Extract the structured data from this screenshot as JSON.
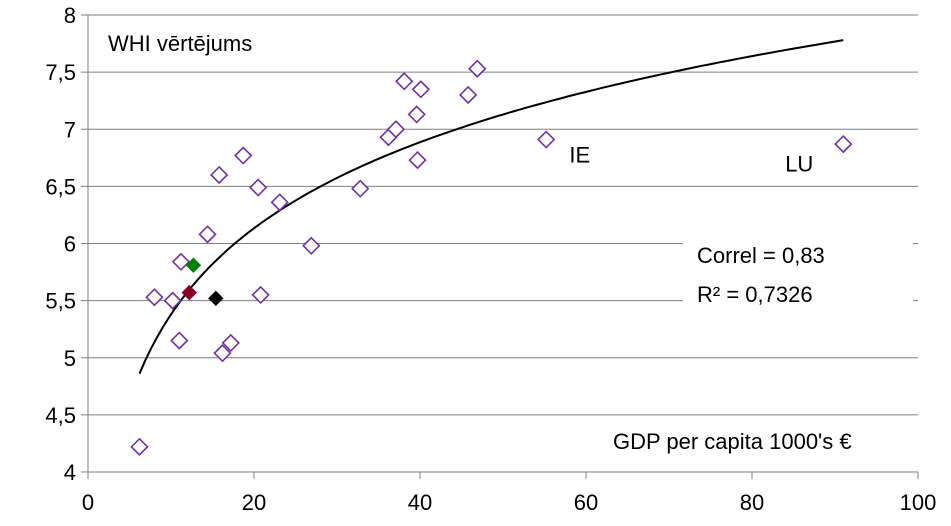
{
  "chart_data": {
    "type": "scatter",
    "title": "",
    "xlabel": "GDP per capita 1000's €",
    "ylabel": "WHI vērtējums",
    "xlim": [
      0,
      100
    ],
    "ylim": [
      4,
      8
    ],
    "x_ticks": [
      "0",
      "20",
      "40",
      "60",
      "80",
      "100"
    ],
    "y_ticks": [
      "4",
      "4,5",
      "5",
      "5,5",
      "6",
      "6,5",
      "7",
      "7,5",
      "8"
    ],
    "grid": "horizontal",
    "colors": {
      "marker_outline": "#7030a0",
      "highlight_green": "#008000",
      "highlight_red": "#8b0026",
      "highlight_black": "#000000",
      "trendline": "#000000",
      "grid": "#7f7f7f"
    },
    "points": [
      {
        "x": 6.2,
        "y": 4.22
      },
      {
        "x": 8.0,
        "y": 5.53
      },
      {
        "x": 10.2,
        "y": 5.5
      },
      {
        "x": 11.0,
        "y": 5.15
      },
      {
        "x": 11.2,
        "y": 5.84
      },
      {
        "x": 14.4,
        "y": 6.08
      },
      {
        "x": 15.8,
        "y": 6.6
      },
      {
        "x": 16.2,
        "y": 5.04
      },
      {
        "x": 17.2,
        "y": 5.13
      },
      {
        "x": 18.7,
        "y": 6.77
      },
      {
        "x": 20.5,
        "y": 6.49
      },
      {
        "x": 20.8,
        "y": 5.55
      },
      {
        "x": 23.1,
        "y": 6.36
      },
      {
        "x": 26.9,
        "y": 5.98
      },
      {
        "x": 32.8,
        "y": 6.48
      },
      {
        "x": 36.2,
        "y": 6.93
      },
      {
        "x": 37.1,
        "y": 7.0
      },
      {
        "x": 38.1,
        "y": 7.42
      },
      {
        "x": 39.6,
        "y": 7.13
      },
      {
        "x": 39.7,
        "y": 6.73
      },
      {
        "x": 40.1,
        "y": 7.35
      },
      {
        "x": 45.8,
        "y": 7.3
      },
      {
        "x": 46.9,
        "y": 7.53
      },
      {
        "x": 55.2,
        "y": 6.91
      },
      {
        "x": 91.0,
        "y": 6.87
      }
    ],
    "highlighted_points": [
      {
        "x": 12.7,
        "y": 5.81,
        "color": "#008000"
      },
      {
        "x": 12.2,
        "y": 5.57,
        "color": "#8b0026"
      },
      {
        "x": 15.4,
        "y": 5.52,
        "color": "#000000"
      }
    ],
    "trendline": {
      "type": "logarithmic",
      "x_range": [
        6.2,
        91
      ],
      "y_start": 4.86,
      "y_end": 7.78
    },
    "point_labels": [
      {
        "text": "IE",
        "x": 58,
        "y": 6.78
      },
      {
        "text": "LU",
        "x": 84,
        "y": 6.7
      }
    ],
    "stats": {
      "correl": "Correl = 0,83",
      "r2": "R² = 0,7326"
    }
  }
}
